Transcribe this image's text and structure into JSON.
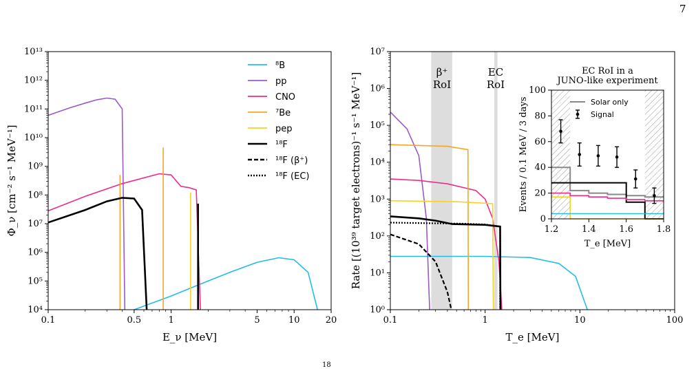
{
  "page_number": "7",
  "caption_fragment": "18",
  "colors": {
    "B8": "#22bde6",
    "pp": "#9b59c6",
    "CNO": "#ee2a8a",
    "Be7": "#f5a623",
    "pep": "#f7d21e",
    "F18": "#000000",
    "solar_only": "#888888",
    "roi_band": "#dddddd"
  },
  "chart_data": [
    {
      "type": "line",
      "title": "",
      "xlabel": "E_ν [MeV]",
      "ylabel": "Φ_ν [cm⁻² s⁻¹ MeV⁻¹]",
      "xscale": "log",
      "yscale": "log",
      "xlim": [
        0.1,
        20
      ],
      "ylim": [
        10000,
        10000000000000
      ],
      "xticks": [
        "0.1",
        "0.5",
        "1",
        "5",
        "10",
        "20"
      ],
      "yticks": [
        "10⁴",
        "10⁵",
        "10⁶",
        "10⁷",
        "10⁸",
        "10⁹",
        "10¹⁰",
        "10¹¹",
        "10¹²",
        "10¹³"
      ],
      "legend": [
        "⁸B",
        "pp",
        "CNO",
        "⁷Be",
        "pep",
        "¹⁸F",
        "¹⁸F (β⁺)",
        "¹⁸F (EC)"
      ],
      "legend_position": "top-right",
      "series": [
        {
          "name": "⁸B",
          "x": [
            0.5,
            1,
            2,
            3,
            5,
            7.5,
            10,
            13,
            15.5
          ],
          "y": [
            10000,
            30000,
            100000,
            200000,
            450000,
            650000,
            550000,
            200000,
            10000
          ]
        },
        {
          "name": "pp",
          "x": [
            0.1,
            0.15,
            0.2,
            0.25,
            0.3,
            0.35,
            0.4,
            0.42
          ],
          "y": [
            60000000000,
            110000000000,
            160000000000,
            210000000000,
            240000000000,
            220000000000,
            100000000000,
            10000
          ]
        },
        {
          "name": "CNO",
          "x": [
            0.1,
            0.2,
            0.4,
            0.8,
            1.0,
            1.2,
            1.4,
            1.6,
            1.73
          ],
          "y": [
            28000000,
            90000000,
            250000000,
            550000000,
            500000000,
            200000000,
            180000000,
            150000000,
            10000
          ]
        },
        {
          "name": "⁷Be",
          "x": [
            0.384,
            0.862
          ],
          "y": [
            500000000,
            4500000000
          ],
          "style": "lines"
        },
        {
          "name": "pep",
          "x": [
            1.44
          ],
          "y": [
            120000000
          ],
          "style": "line"
        },
        {
          "name": "¹⁸F",
          "x": [
            0.1,
            0.2,
            0.3,
            0.4,
            0.5,
            0.58,
            0.633,
            1.655
          ],
          "y": [
            11000000,
            30000000,
            60000000,
            80000000,
            75000000,
            30000000,
            10000,
            50000000
          ]
        }
      ]
    },
    {
      "type": "line",
      "title": "",
      "xlabel": "T_e [MeV]",
      "ylabel": "Rate [(10³⁹ target electrons)⁻¹ s⁻¹ MeV⁻¹]",
      "xscale": "log",
      "yscale": "log",
      "xlim": [
        0.1,
        100
      ],
      "ylim": [
        1,
        10000000
      ],
      "xticks": [
        "0.1",
        "1",
        "10",
        "100"
      ],
      "yticks": [
        "10⁰",
        "10¹",
        "10²",
        "10³",
        "10⁴",
        "10⁵",
        "10⁶",
        "10⁷"
      ],
      "annotations": [
        "β⁺",
        "RoI",
        "EC",
        "RoI"
      ],
      "roi_bands": [
        {
          "label": "β⁺ RoI",
          "x": [
            0.27,
            0.45
          ]
        },
        {
          "label": "EC RoI",
          "x": [
            1.25,
            1.35
          ]
        }
      ],
      "series": [
        {
          "name": "⁸B",
          "x": [
            0.1,
            1,
            3,
            6,
            9,
            12
          ],
          "y": [
            28,
            28,
            26,
            18,
            8,
            1
          ]
        },
        {
          "name": "pp",
          "x": [
            0.1,
            0.15,
            0.2,
            0.24,
            0.26
          ],
          "y": [
            230000,
            80000,
            15000,
            300,
            1
          ]
        },
        {
          "name": "CNO",
          "x": [
            0.1,
            0.2,
            0.4,
            0.8,
            1.0,
            1.2,
            1.4,
            1.5
          ],
          "y": [
            3500,
            3200,
            2600,
            1700,
            1000,
            300,
            20,
            1
          ]
        },
        {
          "name": "⁷Be",
          "x": [
            0.1,
            0.4,
            0.66,
            0.665
          ],
          "y": [
            30000,
            27000,
            22000,
            1
          ]
        },
        {
          "name": "pep",
          "x": [
            0.1,
            0.5,
            1.2,
            1.22
          ],
          "y": [
            900,
            850,
            750,
            1
          ]
        },
        {
          "name": "¹⁸F",
          "x": [
            0.1,
            0.2,
            0.3,
            0.45,
            1.0,
            1.44,
            1.45
          ],
          "y": [
            340,
            300,
            260,
            210,
            200,
            180,
            1
          ]
        },
        {
          "name": "¹⁸F (β⁺)",
          "x": [
            0.1,
            0.2,
            0.3,
            0.4,
            0.44
          ],
          "y": [
            110,
            60,
            20,
            3,
            1
          ]
        },
        {
          "name": "¹⁸F (EC)",
          "x": [
            0.1,
            0.3,
            0.6,
            1.0,
            1.44
          ],
          "y": [
            230,
            220,
            215,
            205,
            180
          ]
        }
      ]
    },
    {
      "type": "line",
      "title": "EC RoI in a JUNO-like experiment",
      "xlabel": "T_e [MeV]",
      "ylabel": "Events / 0.1 MeV / 3 days",
      "xlim": [
        1.2,
        1.8
      ],
      "ylim": [
        0,
        100
      ],
      "xticks": [
        "1.2",
        "1.4",
        "1.6",
        "1.8"
      ],
      "yticks": [
        "0",
        "20",
        "40",
        "60",
        "80",
        "100"
      ],
      "legend": [
        "Solar only",
        "Signal"
      ],
      "legend_position": "top-right",
      "step_edges": [
        1.2,
        1.3,
        1.4,
        1.5,
        1.6,
        1.7,
        1.8
      ],
      "series": [
        {
          "name": "Solar only",
          "values": [
            40,
            22,
            20,
            19,
            18,
            17
          ]
        },
        {
          "name": "¹⁸F",
          "values": [
            28,
            28,
            28,
            28,
            13,
            0
          ]
        },
        {
          "name": "CNO",
          "values": [
            20,
            18,
            17,
            16,
            15,
            14
          ]
        },
        {
          "name": "pep",
          "values": [
            17,
            0,
            0,
            0,
            0,
            0
          ]
        },
        {
          "name": "⁸B",
          "values": [
            4,
            4,
            4,
            4,
            4,
            4
          ]
        },
        {
          "name": "Signal",
          "x": [
            1.25,
            1.35,
            1.45,
            1.55,
            1.65,
            1.75
          ],
          "y": [
            68,
            50,
            49,
            48,
            31,
            18
          ],
          "err": [
            9,
            9,
            8,
            8,
            7,
            6
          ]
        }
      ]
    }
  ]
}
